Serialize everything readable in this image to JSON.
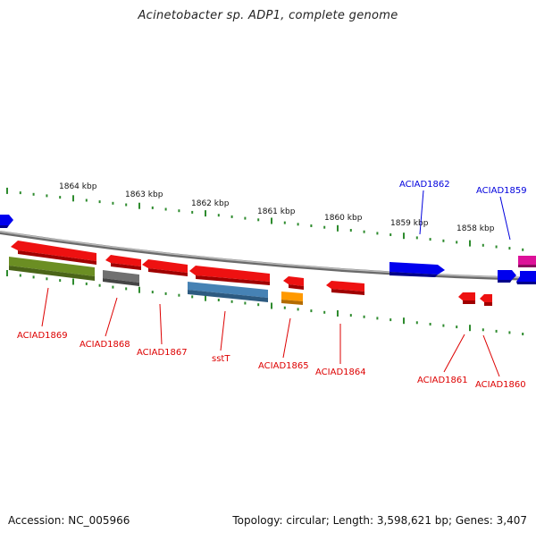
{
  "title": "Acinetobacter sp. ADP1, complete genome",
  "footer": {
    "accession": "Accession: NC_005966",
    "topology": "Topology: circular; Length: 3,598,621 bp; Genes: 3,407"
  },
  "colors": {
    "backbone": "#8a8a8a",
    "ruler": "#2e8b2e",
    "label_forward": "#0000dd",
    "label_reverse": "#dd0000",
    "gene_red": "#ee0000",
    "gene_blue": "#0000ee",
    "gene_green": "#6b8e23",
    "gene_gray": "#6e6e6e",
    "gene_steelblue": "#4682b4",
    "gene_orange": "#ff9900",
    "gene_magenta": "#dd1199"
  },
  "ruler_labels": [
    "1864 kbp",
    "1863 kbp",
    "1862 kbp",
    "1861 kbp",
    "1860 kbp",
    "1859 kbp",
    "1858 kbp"
  ],
  "gene_labels": {
    "forward": [
      "ACIAD1862",
      "ACIAD1859"
    ],
    "reverse": [
      "ACIAD1869",
      "ACIAD1868",
      "ACIAD1867",
      "sstT",
      "ACIAD1865",
      "ACIAD1864",
      "ACIAD1861",
      "ACIAD1860"
    ]
  }
}
